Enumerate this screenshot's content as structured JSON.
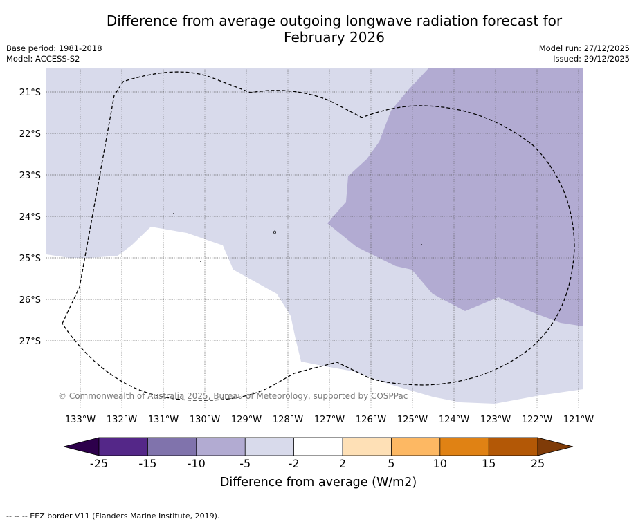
{
  "title_line1": "Difference from average outgoing longwave radiation forecast for",
  "title_line2": "February 2026",
  "base_period": "Base period: 1981-2018",
  "model": "Model: ACCESS-S2",
  "model_run": "Model run: 27/12/2025",
  "issued": "Issued: 29/12/2025",
  "copyright": "© Commonwealth of Australia 2025, Bureau of Meteorology, supported by COSPPac",
  "footnote": "--  --  -- EEZ border V11 (Flanders Marine Institute, 2019).",
  "lat_labels": [
    "21°S",
    "22°S",
    "23°S",
    "24°S",
    "25°S",
    "26°S",
    "27°S"
  ],
  "lon_labels": [
    "133°W",
    "132°W",
    "131°W",
    "130°W",
    "129°W",
    "128°W",
    "127°W",
    "126°W",
    "125°W",
    "124°W",
    "123°W",
    "122°W",
    "121°W"
  ],
  "colorbar": {
    "title": "Difference from average (W/m2)",
    "ticks": [
      "-25",
      "-15",
      "-10",
      "-5",
      "-2",
      "2",
      "5",
      "10",
      "15",
      "25"
    ],
    "colors": {
      "lt_neg25": "#2d004b",
      "neg25_neg15": "#542788",
      "neg15_neg10": "#8073ac",
      "neg10_neg5": "#b2abd2",
      "neg5_neg2": "#d8daeb",
      "neg2_2": "#ffffff",
      "2_5": "#fee0b6",
      "5_10": "#fdb863",
      "10_15": "#e08214",
      "15_25": "#b35806",
      "gt_25": "#7f3b08"
    }
  },
  "map_colors": {
    "light": "#d8daeb",
    "mid": "#b2abd2",
    "white": "#ffffff"
  }
}
